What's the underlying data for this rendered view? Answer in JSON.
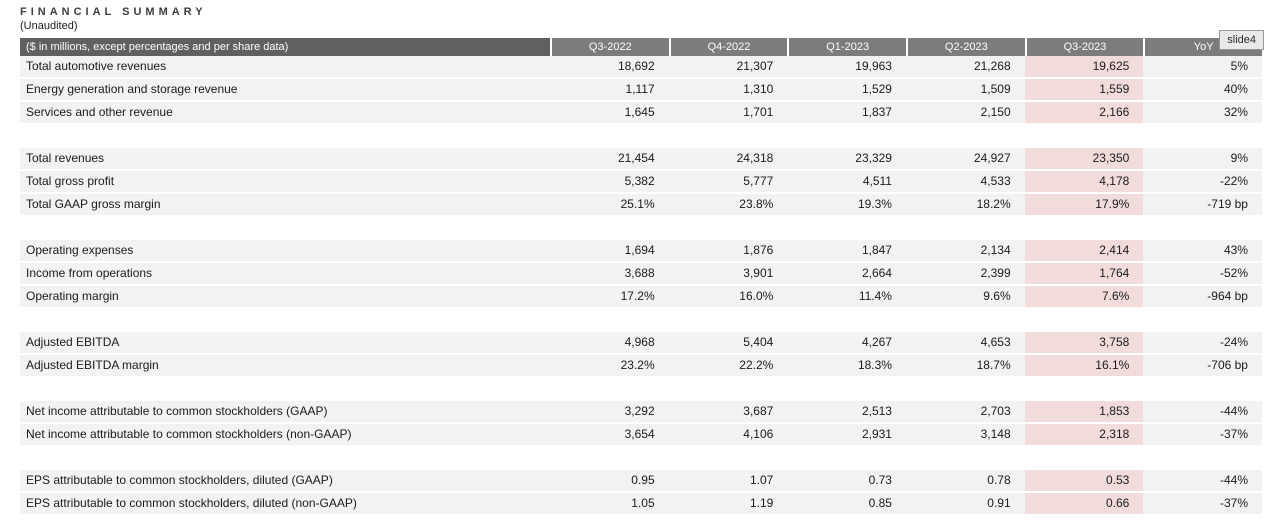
{
  "page": {
    "title": "FINANCIAL SUMMARY",
    "subtitle": "(Unaudited)"
  },
  "overlay": {
    "slide_label": "slide4"
  },
  "table": {
    "header": {
      "label": "($ in millions, except percentages and per share data)",
      "columns": [
        "Q3-2022",
        "Q4-2022",
        "Q1-2023",
        "Q2-2023",
        "Q3-2023",
        "YoY"
      ]
    },
    "highlight_column": "Q3-2023",
    "colors": {
      "header_bg": "#7c7c7c",
      "header_left_bg": "#606060",
      "row_bg": "#f2f2f2",
      "highlight_bg": "#f2dcdb"
    },
    "rows": [
      {
        "type": "data",
        "label": "Total automotive revenues",
        "values": [
          "18,692",
          "21,307",
          "19,963",
          "21,268",
          "19,625",
          "5%"
        ]
      },
      {
        "type": "data",
        "label": "Energy generation and storage revenue",
        "values": [
          "1,117",
          "1,310",
          "1,529",
          "1,509",
          "1,559",
          "40%"
        ]
      },
      {
        "type": "data",
        "label": "Services and other revenue",
        "values": [
          "1,645",
          "1,701",
          "1,837",
          "2,150",
          "2,166",
          "32%"
        ]
      },
      {
        "type": "spacer"
      },
      {
        "type": "data",
        "label": "Total revenues",
        "values": [
          "21,454",
          "24,318",
          "23,329",
          "24,927",
          "23,350",
          "9%"
        ]
      },
      {
        "type": "data",
        "label": "Total gross profit",
        "values": [
          "5,382",
          "5,777",
          "4,511",
          "4,533",
          "4,178",
          "-22%"
        ]
      },
      {
        "type": "data",
        "label": "Total GAAP gross margin",
        "values": [
          "25.1%",
          "23.8%",
          "19.3%",
          "18.2%",
          "17.9%",
          "-719 bp"
        ]
      },
      {
        "type": "spacer"
      },
      {
        "type": "data",
        "label": "Operating expenses",
        "values": [
          "1,694",
          "1,876",
          "1,847",
          "2,134",
          "2,414",
          "43%"
        ]
      },
      {
        "type": "data",
        "label": "Income from operations",
        "values": [
          "3,688",
          "3,901",
          "2,664",
          "2,399",
          "1,764",
          "-52%"
        ]
      },
      {
        "type": "data",
        "label": "Operating margin",
        "values": [
          "17.2%",
          "16.0%",
          "11.4%",
          "9.6%",
          "7.6%",
          "-964 bp"
        ]
      },
      {
        "type": "spacer"
      },
      {
        "type": "data",
        "label": "Adjusted EBITDA",
        "values": [
          "4,968",
          "5,404",
          "4,267",
          "4,653",
          "3,758",
          "-24%"
        ]
      },
      {
        "type": "data",
        "label": "Adjusted EBITDA margin",
        "values": [
          "23.2%",
          "22.2%",
          "18.3%",
          "18.7%",
          "16.1%",
          "-706 bp"
        ]
      },
      {
        "type": "spacer"
      },
      {
        "type": "data",
        "label": "Net income attributable to common stockholders (GAAP)",
        "values": [
          "3,292",
          "3,687",
          "2,513",
          "2,703",
          "1,853",
          "-44%"
        ]
      },
      {
        "type": "data",
        "label": "Net income attributable to common stockholders (non-GAAP)",
        "values": [
          "3,654",
          "4,106",
          "2,931",
          "3,148",
          "2,318",
          "-37%"
        ]
      },
      {
        "type": "spacer"
      },
      {
        "type": "data",
        "label": "EPS attributable to common stockholders, diluted (GAAP)",
        "values": [
          "0.95",
          "1.07",
          "0.73",
          "0.78",
          "0.53",
          "-44%"
        ]
      },
      {
        "type": "data",
        "label": "EPS attributable to common stockholders, diluted (non-GAAP)",
        "values": [
          "1.05",
          "1.19",
          "0.85",
          "0.91",
          "0.66",
          "-37%"
        ]
      }
    ]
  }
}
